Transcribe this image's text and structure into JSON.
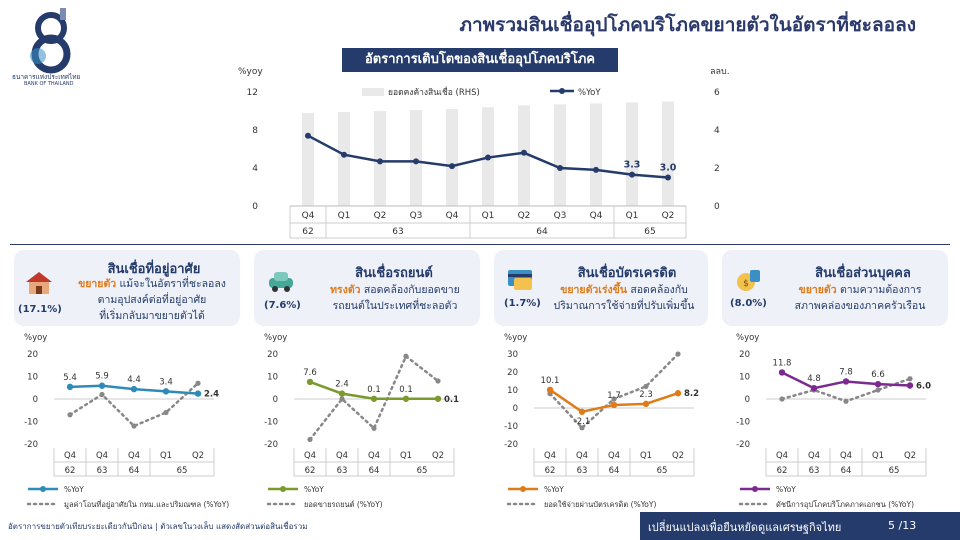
{
  "header": {
    "page_title": "ภาพรวมสินเชื่ออุปโภคบริโภคขยายตัวในอัตราที่ชะลอลง",
    "logo_text_th": "ธนาคารแห่งประเทศไทย",
    "logo_text_en": "BANK OF THAILAND"
  },
  "main_chart_title": "อัตราการเติบโตของสินเชื่ออุปโภคบริโภค",
  "chart_data": [
    {
      "type": "bar",
      "title": "อัตราการเติบโตของสินเชื่ออุปโภคบริโภค",
      "ylabel_left": "%yoy",
      "ylabel_right": "ลลบ.",
      "ylim_left": [
        0,
        12
      ],
      "ylim_right": [
        0,
        6
      ],
      "yticks_left": [
        "0",
        "4",
        "8",
        "12"
      ],
      "yticks_right": [
        "0",
        "2",
        "4",
        "6"
      ],
      "categories": [
        "Q4",
        "Q1",
        "Q2",
        "Q3",
        "Q4",
        "Q1",
        "Q2",
        "Q3",
        "Q4",
        "Q1",
        "Q2"
      ],
      "year_groups": [
        {
          "label": "62",
          "span": 1
        },
        {
          "label": "63",
          "span": 4
        },
        {
          "label": "64",
          "span": 4
        },
        {
          "label": "65",
          "span": 2
        }
      ],
      "series": [
        {
          "name": "ยอดคงค้างสินเชื่อ (RHS)",
          "type": "bar",
          "axis": "right",
          "color": "#e9e9e9",
          "values": [
            4.9,
            4.95,
            5.0,
            5.05,
            5.1,
            5.2,
            5.3,
            5.35,
            5.4,
            5.45,
            5.5
          ]
        },
        {
          "name": "%YoY",
          "type": "line",
          "axis": "left",
          "color": "#243b6b",
          "values": [
            7.4,
            5.4,
            4.7,
            4.7,
            4.2,
            5.1,
            5.6,
            4.0,
            3.8,
            3.3,
            3.0
          ]
        }
      ],
      "data_labels": [
        {
          "index": 9,
          "text": "3.3"
        },
        {
          "index": 10,
          "text": "3.0"
        }
      ]
    },
    {
      "type": "line",
      "title": "สินเชื่อที่อยู่อาศัย",
      "ylabel": "%yoy",
      "ylim": [
        -20,
        20
      ],
      "yticks": [
        "20",
        "10",
        "0",
        "-10",
        "-20"
      ],
      "categories": [
        "Q4",
        "Q4",
        "Q4",
        "Q1",
        "Q2"
      ],
      "year_labels": [
        "62",
        "63",
        "64",
        "65"
      ],
      "series": [
        {
          "name": "%YoY",
          "color": "#2e8bb8",
          "values": [
            5.4,
            5.9,
            4.4,
            3.4,
            2.4
          ]
        },
        {
          "name": "มูลค่าโอนที่อยู่อาศัยใน กทม.และปริมณฑล (%YoY)",
          "color": "#888888",
          "dashed": true,
          "values": [
            -7,
            2,
            -12,
            -6,
            7
          ]
        }
      ],
      "data_labels": [
        "5.4",
        "5.9",
        "4.4",
        "3.4",
        "2.4"
      ]
    },
    {
      "type": "line",
      "title": "สินเชื่อรถยนต์",
      "ylabel": "%yoy",
      "ylim": [
        -20,
        20
      ],
      "yticks": [
        "20",
        "10",
        "0",
        "-10",
        "-20"
      ],
      "categories": [
        "Q4",
        "Q4",
        "Q4",
        "Q1",
        "Q2"
      ],
      "year_labels": [
        "62",
        "63",
        "64",
        "65"
      ],
      "series": [
        {
          "name": "%YoY",
          "color": "#7a9a2e",
          "values": [
            7.6,
            2.4,
            0.1,
            0.1,
            0.1
          ]
        },
        {
          "name": "ยอดขายรถยนต์ (%YoY)",
          "color": "#888888",
          "dashed": true,
          "values": [
            -18,
            0,
            -13,
            19,
            8
          ]
        }
      ],
      "data_labels": [
        "7.6",
        "2.4",
        "0.1",
        "0.1",
        "0.1"
      ]
    },
    {
      "type": "line",
      "title": "สินเชื่อบัตรเครดิต",
      "ylabel": "%yoy",
      "ylim": [
        -20,
        30
      ],
      "yticks": [
        "30",
        "20",
        "10",
        "0",
        "-10",
        "-20"
      ],
      "categories": [
        "Q4",
        "Q4",
        "Q4",
        "Q1",
        "Q2"
      ],
      "year_labels": [
        "62",
        "63",
        "64",
        "65"
      ],
      "series": [
        {
          "name": "%YoY",
          "color": "#e07b1a",
          "values": [
            10.1,
            -2.1,
            1.7,
            2.3,
            8.2
          ]
        },
        {
          "name": "ยอดใช้จ่ายผ่านบัตรเครดิต (%YoY)",
          "color": "#888888",
          "dashed": true,
          "values": [
            8,
            -11,
            5,
            12,
            30
          ]
        }
      ],
      "data_labels": [
        "10.1",
        "-2.1",
        "1.7",
        "2.3",
        "8.2"
      ]
    },
    {
      "type": "line",
      "title": "สินเชื่อส่วนบุคคล",
      "ylabel": "%yoy",
      "ylim": [
        -20,
        20
      ],
      "yticks": [
        "20",
        "10",
        "0",
        "-10",
        "-20"
      ],
      "categories": [
        "Q4",
        "Q4",
        "Q4",
        "Q1",
        "Q2"
      ],
      "year_labels": [
        "62",
        "63",
        "64",
        "65"
      ],
      "series": [
        {
          "name": "%YoY",
          "color": "#7b2a90",
          "values": [
            11.8,
            4.8,
            7.8,
            6.6,
            6.0
          ]
        },
        {
          "name": "ดัชนีการอุปโภคบริโภคภาคเอกชน (%YoY)",
          "color": "#888888",
          "dashed": true,
          "values": [
            0,
            4,
            -1,
            4,
            9
          ]
        }
      ],
      "data_labels": [
        "11.8",
        "4.8",
        "7.8",
        "6.6",
        "6.0"
      ]
    }
  ],
  "panels": [
    {
      "title": "สินเชื่อที่อยู่อาศัย",
      "share": "(17.1%)",
      "highlight": "ขยายตัว",
      "desc1": " แม้จะในอัตราที่ชะลอลง",
      "desc2": "ตามอุปสงค์ต่อที่อยู่อาศัย",
      "desc3": "ที่เริ่มกลับมาขยายตัวได้",
      "icon": "house-icon"
    },
    {
      "title": "สินเชื่อรถยนต์",
      "share": "(7.6%)",
      "highlight": "ทรงตัว",
      "desc1": " สอดคล้องกับยอดขาย",
      "desc2": "รถยนต์ในประเทศที่ชะลอตัว",
      "desc3": "",
      "icon": "car-icon"
    },
    {
      "title": "สินเชื่อบัตรเครดิต",
      "share": "(1.7%)",
      "highlight": "ขยายตัวเร่งขึ้น",
      "desc1": " สอดคล้องกับ",
      "desc2": "ปริมาณการใช้จ่ายที่ปรับเพิ่มขึ้น",
      "desc3": "",
      "icon": "credit-card-icon"
    },
    {
      "title": "สินเชื่อส่วนบุคคล",
      "share": "(8.0%)",
      "highlight": "ขยายตัว",
      "desc1": " ตามความต้องการ",
      "desc2": "สภาพคล่องของภาคครัวเรือน",
      "desc3": "",
      "icon": "money-bag-icon"
    }
  ],
  "footer": {
    "footnote": "อัตราการขยายตัวเทียบระยะเดียวกันปีก่อน | ตัวเลขในวงเล็บ แสดงสัดส่วนต่อสินเชื่อรวม",
    "slogan": "เปลี่ยนแปลงเพื่อยืนหยัดดูแลเศรษฐกิจไทย",
    "page_number": "5 /13"
  }
}
